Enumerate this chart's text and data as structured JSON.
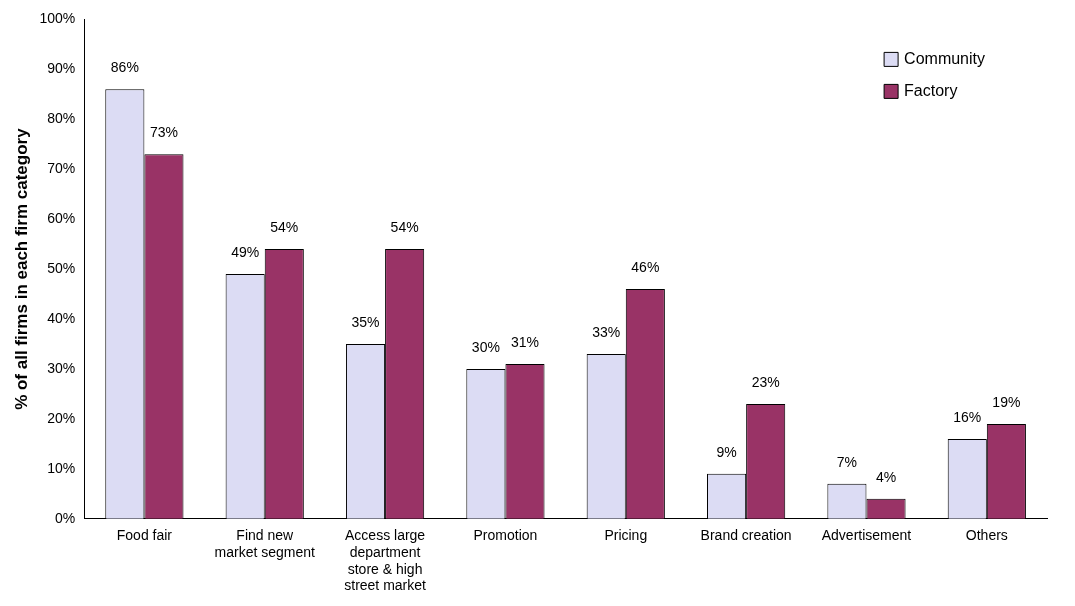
{
  "chart_data": {
    "type": "bar",
    "ylabel": "% of all firms in each firm category",
    "categories": [
      "Food fair",
      "Find new market segment",
      "Access large department store & high street market",
      "Promotion",
      "Pricing",
      "Brand creation",
      "Advertisement",
      "Others"
    ],
    "series": [
      {
        "name": "Community",
        "color": "#dcdcf4",
        "values": [
          86,
          49,
          35,
          30,
          33,
          9,
          7,
          16
        ],
        "value_labels": [
          "86%",
          "49%",
          "35%",
          "30%",
          "33%",
          "9%",
          "7%",
          "16%"
        ]
      },
      {
        "name": "Factory",
        "color": "#993366",
        "values": [
          73,
          54,
          54,
          31,
          46,
          23,
          4,
          19
        ],
        "value_labels": [
          "73%",
          "54%",
          "54%",
          "31%",
          "46%",
          "23%",
          "4%",
          "19%"
        ]
      }
    ],
    "ylim": [
      0,
      100
    ],
    "yticks": [
      {
        "value": 0,
        "label": "0%"
      },
      {
        "value": 10,
        "label": "10%"
      },
      {
        "value": 20,
        "label": "20%"
      },
      {
        "value": 30,
        "label": "30%"
      },
      {
        "value": 40,
        "label": "40%"
      },
      {
        "value": 50,
        "label": "50%"
      },
      {
        "value": 60,
        "label": "60%"
      },
      {
        "value": 70,
        "label": "70%"
      },
      {
        "value": 80,
        "label": "80%"
      },
      {
        "value": 90,
        "label": "90%"
      },
      {
        "value": 100,
        "label": "100%"
      }
    ],
    "grid": false,
    "legend": "top right"
  }
}
